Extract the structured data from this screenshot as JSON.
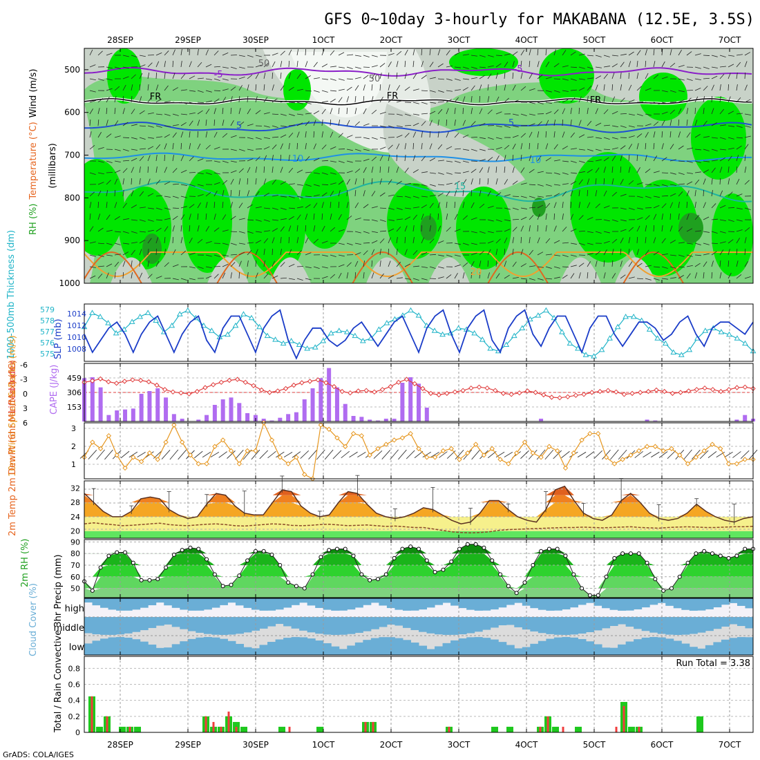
{
  "title": "GFS 0~10day 3-hourly for MAKABANA (12.5E, 3.5S)",
  "footer": "GrADS: COLA/IGES",
  "dates": [
    "28SEP",
    "29SEP",
    "30SEP",
    "1OCT",
    "2OCT",
    "3OCT",
    "4OCT",
    "5OCT",
    "6OCT",
    "7OCT"
  ],
  "colors": {
    "rh_dark": "#1fa01f",
    "rh_mid": "#00e600",
    "rh_light": "#7fd27f",
    "rh_gray": "#c8d2c8",
    "rh_pale": "#e6ece6",
    "temp_purple": "#8a1fc8",
    "temp_blue": "#1f50d2",
    "temp_lblue": "#1e90e6",
    "temp_teal": "#1eb4a0",
    "temp_orange": "#f0a030",
    "slp": "#1a3cc8",
    "thick": "#20b4c8",
    "li": "#e03c3c",
    "cape": "#b06cf0",
    "wind": "#e6961e",
    "temp": "#e6641e",
    "dew": "#8c4a28",
    "cloud": "#6aaed6",
    "precip_total": "#1ec81e",
    "precip_conv": "#f03c3c"
  },
  "chart_data": [
    {
      "type": "heatmap",
      "name": "upper-air",
      "ylabel_parts": [
        "RH (%)",
        "Temperature (°C)",
        "Wind (m/s)"
      ],
      "ylabel_unit": "(millibars)",
      "yticks": [
        "500",
        "600",
        "700",
        "800",
        "900",
        "1000"
      ],
      "ylim": [
        1000,
        450
      ],
      "contour_labels": [
        "-5",
        "FR",
        "5",
        "10",
        "15",
        "20",
        "50",
        "50"
      ]
    },
    {
      "type": "line",
      "name": "slp-thickness",
      "ylabel_left": "1000-500mb Thickness (dm)",
      "ylabel_right": "SLP (mb)",
      "yticks_left": [
        "579",
        "578",
        "577",
        "576",
        "575"
      ],
      "yticks_right": [
        "1014",
        "1012",
        "1010",
        "1008"
      ],
      "series": [
        {
          "name": "SLP",
          "values": [
            1011,
            1008,
            1010,
            1012,
            1013,
            1011,
            1008,
            1011,
            1013,
            1014,
            1011,
            1008,
            1011,
            1013,
            1014,
            1010,
            1008,
            1012,
            1014,
            1014,
            1011,
            1008,
            1012,
            1014,
            1015,
            1010,
            1007,
            1010,
            1012,
            1012,
            1010,
            1009,
            1010,
            1012,
            1013,
            1011,
            1009,
            1011,
            1013,
            1014,
            1011,
            1008,
            1012,
            1014,
            1015,
            1011,
            1008,
            1012,
            1014,
            1015,
            1010,
            1008,
            1012,
            1014,
            1015,
            1011,
            1009,
            1012,
            1014,
            1014,
            1011,
            1008,
            1012,
            1014,
            1014,
            1011,
            1009,
            1011,
            1013,
            1013,
            1012,
            1010,
            1011,
            1013,
            1014,
            1011,
            1009,
            1012,
            1013,
            1013,
            1012,
            1011,
            1013
          ]
        },
        {
          "name": "Thickness",
          "values": [
            577.5,
            578.6,
            578.3,
            577.8,
            577.0,
            577.3,
            577.9,
            578.3,
            578.6,
            578.0,
            577.1,
            577.6,
            578.5,
            578.8,
            578.2,
            577.6,
            577.2,
            576.7,
            576.9,
            577.6,
            578.5,
            578.2,
            577.5,
            576.8,
            576.5,
            576.2,
            576.4,
            576.1,
            575.8,
            575.9,
            576.4,
            577.0,
            577.2,
            577.1,
            576.8,
            576.4,
            576.6,
            577.3,
            577.8,
            578.1,
            578.4,
            578.8,
            578.4,
            577.6,
            577.2,
            576.9,
            577.0,
            577.4,
            577.3,
            577.0,
            576.5,
            575.8,
            575.6,
            576.1,
            576.8,
            577.4,
            578.1,
            578.4,
            578.8,
            578.2,
            577.1,
            576.2,
            575.8,
            575.3,
            575.2,
            575.7,
            576.6,
            577.5,
            578.3,
            578.3,
            578.0,
            577.3,
            576.6,
            576.2,
            575.5,
            575.3,
            575.7,
            576.6,
            577.2,
            577.4,
            577.1,
            576.9,
            576.6,
            576.2,
            575.6
          ]
        }
      ]
    },
    {
      "type": "bar",
      "name": "li-cape",
      "ylabel_left": "Lifted Index",
      "ylabel_right": "CAPE (J/kg)",
      "yticks_left": [
        "-6",
        "-3",
        "0",
        "3",
        "6"
      ],
      "yticks_right": [
        "459",
        "306",
        "153"
      ],
      "series": [
        {
          "name": "CAPE",
          "values": [
            470,
            480,
            370,
            70,
            120,
            130,
            140,
            300,
            330,
            360,
            260,
            80,
            30,
            0,
            20,
            70,
            180,
            240,
            260,
            200,
            90,
            70,
            30,
            10,
            40,
            80,
            100,
            240,
            360,
            470,
            580,
            370,
            190,
            60,
            50,
            20,
            10,
            30,
            30,
            420,
            480,
            410,
            150,
            0,
            0,
            0,
            0,
            0,
            0,
            0,
            0,
            0,
            0,
            0,
            0,
            0,
            30,
            0,
            0,
            0,
            0,
            0,
            0,
            0,
            0,
            0,
            0,
            0,
            0,
            20,
            10,
            0,
            0,
            0,
            0,
            0,
            0,
            0,
            0,
            0,
            20,
            70,
            30
          ]
        },
        {
          "name": "Lifted Index",
          "values": [
            -2.1,
            -2.4,
            -2.8,
            -2.2,
            -1.9,
            -2.3,
            -2.6,
            -2.5,
            -2.2,
            -1.5,
            -0.6,
            -0.1,
            0.1,
            0.3,
            -0.2,
            -1.0,
            -1.6,
            -2.1,
            -2.5,
            -2.7,
            -2.1,
            -1.4,
            -0.5,
            0.0,
            -0.3,
            -0.8,
            -1.5,
            -2.0,
            -2.3,
            -2.6,
            -2.0,
            -1.2,
            -0.2,
            0.1,
            -0.3,
            -0.4,
            -0.1,
            -0.6,
            -1.2,
            -2.1,
            -2.7,
            -1.8,
            -0.8,
            0.2,
            0.5,
            0.2,
            -0.1,
            -0.4,
            -0.9,
            -1.1,
            -0.9,
            -0.4,
            0.2,
            0.4,
            0.1,
            -0.3,
            0.0,
            0.5,
            1.0,
            1.1,
            0.9,
            0.6,
            0.4,
            0.0,
            -0.2,
            -0.4,
            -0.1,
            0.4,
            0.2,
            0.0,
            -0.2,
            -0.5,
            -0.2,
            0.2,
            0.0,
            -0.3,
            -0.6,
            -0.9,
            -0.6,
            -0.2,
            -0.6,
            -1.0,
            -1.1,
            -0.8
          ]
        }
      ]
    },
    {
      "type": "line",
      "name": "wind10m",
      "ylabel": "10m Wind Speed & Barbs (m/s)",
      "yticks": [
        "3",
        "2",
        "1"
      ],
      "ylim": [
        0.5,
        3.1
      ],
      "series": [
        {
          "name": "10m Wind Speed",
          "values": [
            1.5,
            2.2,
            1.9,
            2.5,
            1.6,
            1.0,
            1.5,
            1.3,
            1.7,
            1.4,
            2.2,
            3.0,
            2.2,
            1.6,
            1.2,
            1.2,
            2.0,
            2.3,
            1.8,
            1.2,
            1.8,
            1.8,
            3.1,
            2.3,
            1.5,
            1.2,
            1.5,
            0.7,
            0.5,
            3.0,
            2.8,
            2.4,
            2.0,
            2.6,
            2.5,
            1.6,
            1.9,
            2.1,
            2.3,
            2.4,
            2.6,
            1.9,
            1.5,
            1.5,
            1.8,
            1.9,
            1.4,
            1.7,
            2.1,
            1.6,
            1.9,
            1.4,
            1.2,
            1.7,
            2.2,
            1.7,
            1.5,
            2.0,
            1.8,
            1.0,
            1.7,
            2.3,
            2.6,
            2.6,
            1.5,
            1.2,
            1.4,
            1.6,
            1.8,
            2.0,
            2.0,
            1.8,
            1.9,
            1.6,
            1.2,
            1.5,
            1.8,
            2.1,
            1.9,
            1.2,
            1.2,
            1.4,
            1.4
          ]
        }
      ]
    },
    {
      "type": "area",
      "name": "temp2m",
      "ylabel": "2m Temp 2m DewPt (6hr Min/Max) (°C)",
      "yticks": [
        "32",
        "28",
        "24",
        "20"
      ],
      "ylim": [
        18,
        34
      ],
      "series": [
        {
          "name": "2m Temp",
          "values": [
            30.5,
            28.0,
            25.5,
            24.0,
            24.0,
            25.5,
            29.0,
            29.5,
            29.0,
            26.0,
            24.5,
            23.5,
            24.0,
            27.5,
            30.5,
            30.0,
            27.0,
            25.0,
            24.5,
            24.5,
            28.0,
            31.5,
            31.0,
            27.0,
            25.0,
            24.0,
            24.5,
            28.0,
            31.0,
            30.5,
            27.5,
            25.0,
            24.0,
            23.5,
            24.0,
            25.0,
            26.5,
            26.0,
            24.5,
            23.0,
            22.0,
            22.5,
            25.0,
            28.5,
            28.5,
            26.0,
            24.0,
            23.0,
            22.5,
            26.0,
            31.5,
            32.5,
            28.5,
            25.0,
            23.5,
            23.0,
            24.5,
            28.5,
            30.5,
            28.0,
            25.0,
            23.5,
            23.0,
            23.5,
            25.0,
            27.5,
            25.5,
            24.0,
            23.0,
            22.5,
            23.5,
            24.0
          ]
        },
        {
          "name": "2m DewPt",
          "values": [
            22.0,
            22.3,
            22.0,
            21.8,
            21.5,
            21.6,
            21.8,
            22.0,
            22.2,
            21.8,
            21.6,
            21.5,
            21.7,
            21.9,
            22.0,
            21.8,
            21.5,
            21.4,
            21.6,
            21.8,
            22.0,
            21.9,
            21.6,
            21.5,
            21.6,
            21.8,
            21.9,
            21.7,
            21.5,
            21.6,
            21.7,
            21.5,
            21.3,
            21.4,
            21.2,
            21.0,
            21.0,
            20.6,
            20.2,
            19.8,
            19.6,
            19.5,
            19.6,
            19.8,
            20.2,
            20.4,
            20.5,
            20.6,
            20.7,
            20.8,
            20.9,
            21.0,
            21.0,
            21.1,
            21.0,
            20.9,
            21.0,
            21.1,
            21.2,
            21.0,
            20.9,
            20.8,
            21.0,
            21.1,
            21.2,
            21.1,
            21.0,
            21.0,
            21.1,
            21.2,
            21.2,
            21.3
          ]
        }
      ]
    },
    {
      "type": "area",
      "name": "rh2m",
      "ylabel": "2m RH (%)",
      "yticks": [
        "90",
        "80",
        "70",
        "60",
        "50"
      ],
      "ylim": [
        42,
        92
      ],
      "series": [
        {
          "name": "2m RH",
          "values": [
            56,
            48,
            68,
            78,
            81,
            81,
            72,
            57,
            57,
            58,
            68,
            79,
            83,
            85,
            84,
            75,
            62,
            52,
            53,
            61,
            74,
            82,
            82,
            79,
            70,
            55,
            52,
            50,
            62,
            77,
            83,
            84,
            84,
            78,
            62,
            57,
            58,
            62,
            76,
            84,
            86,
            84,
            74,
            64,
            66,
            73,
            84,
            88,
            88,
            85,
            74,
            62,
            52,
            46,
            55,
            70,
            82,
            84,
            84,
            78,
            62,
            50,
            44,
            44,
            60,
            76,
            80,
            80,
            80,
            72,
            58,
            48,
            50,
            60,
            72,
            80,
            82,
            80,
            78,
            76,
            78,
            84,
            84
          ]
        }
      ]
    },
    {
      "type": "area",
      "name": "cloud",
      "ylabel": "Cloud Cover (%)",
      "yticks": [
        "high",
        "middle",
        "low"
      ]
    },
    {
      "type": "bar",
      "name": "precip",
      "ylabel": "Total / Rain Convective 3hr Precip (mm)",
      "yticks": [
        "0.8",
        "0.6",
        "0.4",
        "0.2",
        "0"
      ],
      "ylim": [
        0,
        0.95
      ],
      "run_total_text": "Run Total = 3.38",
      "series": [
        {
          "name": "Total",
          "values": [
            0,
            0.45,
            0.07,
            0.2,
            0,
            0.07,
            0.07,
            0.07,
            0,
            0,
            0,
            0,
            0,
            0,
            0,
            0,
            0.2,
            0.07,
            0.07,
            0.2,
            0.13,
            0.07,
            0,
            0,
            0,
            0,
            0.07,
            0,
            0,
            0,
            0,
            0.07,
            0,
            0,
            0,
            0,
            0,
            0.13,
            0.13,
            0,
            0,
            0,
            0,
            0,
            0,
            0,
            0,
            0,
            0.07,
            0,
            0,
            0,
            0,
            0,
            0.07,
            0,
            0.07,
            0,
            0,
            0,
            0.07,
            0.2,
            0.07,
            0,
            0,
            0.07,
            0,
            0,
            0,
            0,
            0,
            0.38,
            0.07,
            0.07,
            0,
            0,
            0,
            0,
            0,
            0,
            0,
            0.2,
            0,
            0,
            0,
            0,
            0,
            0,
            0
          ]
        },
        {
          "name": "Convective",
          "values": [
            0,
            0.45,
            0,
            0.2,
            0,
            0,
            0.07,
            0,
            0,
            0,
            0,
            0,
            0,
            0,
            0,
            0,
            0.2,
            0.13,
            0.07,
            0.26,
            0.07,
            0,
            0,
            0,
            0,
            0,
            0,
            0.07,
            0,
            0,
            0,
            0,
            0,
            0,
            0,
            0,
            0,
            0.13,
            0.13,
            0,
            0,
            0,
            0,
            0,
            0,
            0,
            0,
            0,
            0.07,
            0,
            0,
            0,
            0,
            0,
            0,
            0,
            0,
            0,
            0,
            0,
            0.07,
            0.2,
            0,
            0.07,
            0,
            0,
            0,
            0,
            0,
            0,
            0.07,
            0.33,
            0,
            0.07,
            0,
            0,
            0,
            0,
            0,
            0,
            0,
            0,
            0,
            0,
            0,
            0,
            0,
            0,
            0
          ]
        }
      ]
    }
  ]
}
